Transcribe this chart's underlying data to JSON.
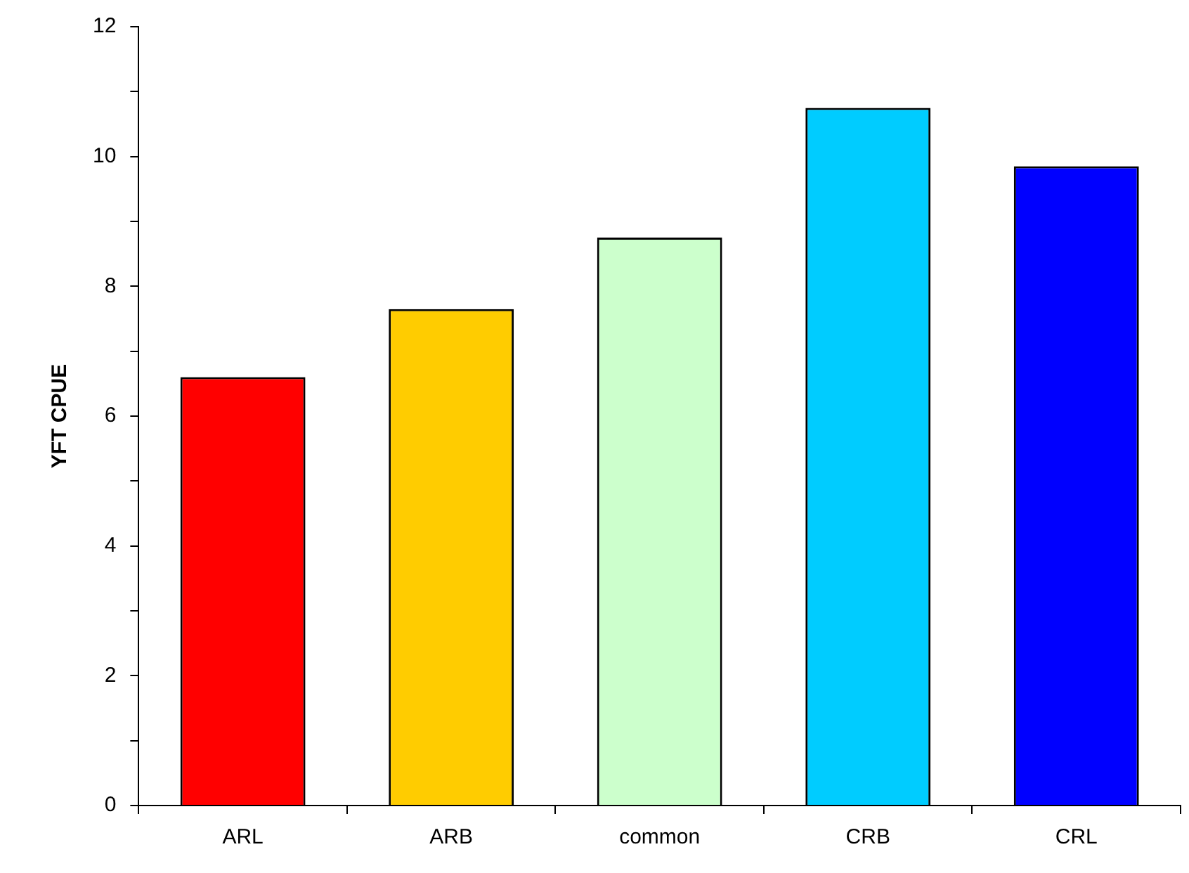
{
  "chart_data": {
    "type": "bar",
    "ylabel": "YFT CPUE",
    "categories": [
      "ARL",
      "ARB",
      "common",
      "CRB",
      "CRL"
    ],
    "values": [
      6.6,
      7.65,
      8.75,
      10.75,
      9.85
    ],
    "colors": [
      "#ff0000",
      "#ffcc00",
      "#ccffcc",
      "#00ccff",
      "#0000ff"
    ],
    "ylim": [
      0,
      12
    ],
    "yticks": [
      0,
      {
        "value": 1,
        "label": null
      },
      2,
      {
        "value": 3,
        "label": null
      },
      4,
      {
        "value": 5,
        "label": null
      },
      6,
      {
        "value": 7,
        "label": null
      },
      8,
      {
        "value": 9,
        "label": null
      },
      10,
      {
        "value": 11,
        "label": null
      },
      12
    ],
    "grid": false
  }
}
